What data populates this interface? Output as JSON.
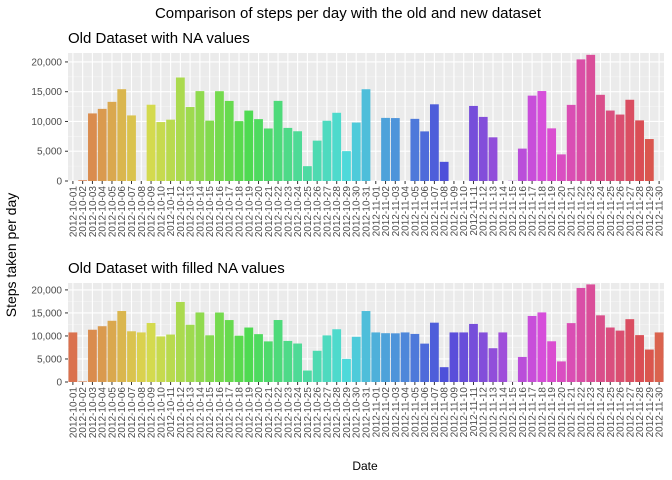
{
  "figure": {
    "title": "Comparison of steps per day with the old and new dataset",
    "ylabel": "Steps taken per day",
    "xlabel": "Date"
  },
  "chart_data": [
    {
      "type": "bar",
      "title": "Old Dataset with NA values",
      "xlabel": "Date",
      "ylabel": "Steps taken per day",
      "ylim": [
        0,
        21500
      ],
      "yticks": [
        0,
        5000,
        10000,
        15000,
        20000
      ],
      "ytick_labels": [
        "0",
        "5,000",
        "10,000",
        "15,000",
        "20,000"
      ],
      "grid": true,
      "fill": "by date (hue palette)",
      "categories": [
        "2012-10-01",
        "2012-10-02",
        "2012-10-03",
        "2012-10-04",
        "2012-10-05",
        "2012-10-06",
        "2012-10-07",
        "2012-10-08",
        "2012-10-09",
        "2012-10-10",
        "2012-10-11",
        "2012-10-12",
        "2012-10-13",
        "2012-10-14",
        "2012-10-15",
        "2012-10-16",
        "2012-10-17",
        "2012-10-18",
        "2012-10-19",
        "2012-10-20",
        "2012-10-21",
        "2012-10-22",
        "2012-10-23",
        "2012-10-24",
        "2012-10-25",
        "2012-10-26",
        "2012-10-27",
        "2012-10-28",
        "2012-10-29",
        "2012-10-30",
        "2012-10-31",
        "2012-11-01",
        "2012-11-02",
        "2012-11-03",
        "2012-11-04",
        "2012-11-05",
        "2012-11-06",
        "2012-11-07",
        "2012-11-08",
        "2012-11-09",
        "2012-11-10",
        "2012-11-11",
        "2012-11-12",
        "2012-11-13",
        "2012-11-14",
        "2012-11-15",
        "2012-11-16",
        "2012-11-17",
        "2012-11-18",
        "2012-11-19",
        "2012-11-20",
        "2012-11-21",
        "2012-11-22",
        "2012-11-23",
        "2012-11-24",
        "2012-11-25",
        "2012-11-26",
        "2012-11-27",
        "2012-11-28",
        "2012-11-29",
        "2012-11-30"
      ],
      "values": [
        null,
        126,
        11352,
        12116,
        13294,
        15420,
        11015,
        null,
        12811,
        9900,
        10304,
        17382,
        12426,
        15098,
        10139,
        15084,
        13452,
        10056,
        11829,
        10395,
        8821,
        13460,
        8918,
        8355,
        2492,
        6778,
        10119,
        11458,
        5018,
        9819,
        15414,
        null,
        10600,
        10571,
        null,
        10439,
        8334,
        12883,
        3219,
        null,
        null,
        12608,
        10765,
        7336,
        null,
        41,
        5441,
        14339,
        15110,
        8841,
        4472,
        12787,
        20427,
        21194,
        14478,
        11834,
        11162,
        13646,
        10183,
        7047,
        null
      ]
    },
    {
      "type": "bar",
      "title": "Old Dataset with filled NA values",
      "xlabel": "Date",
      "ylabel": "Steps taken per day",
      "ylim": [
        0,
        21500
      ],
      "yticks": [
        0,
        5000,
        10000,
        15000,
        20000
      ],
      "ytick_labels": [
        "0",
        "5,000",
        "10,000",
        "15,000",
        "20,000"
      ],
      "grid": true,
      "fill": "by date (hue palette)",
      "categories": [
        "2012-10-01",
        "2012-10-02",
        "2012-10-03",
        "2012-10-04",
        "2012-10-05",
        "2012-10-06",
        "2012-10-07",
        "2012-10-08",
        "2012-10-09",
        "2012-10-10",
        "2012-10-11",
        "2012-10-12",
        "2012-10-13",
        "2012-10-14",
        "2012-10-15",
        "2012-10-16",
        "2012-10-17",
        "2012-10-18",
        "2012-10-19",
        "2012-10-20",
        "2012-10-21",
        "2012-10-22",
        "2012-10-23",
        "2012-10-24",
        "2012-10-25",
        "2012-10-26",
        "2012-10-27",
        "2012-10-28",
        "2012-10-29",
        "2012-10-30",
        "2012-10-31",
        "2012-11-01",
        "2012-11-02",
        "2012-11-03",
        "2012-11-04",
        "2012-11-05",
        "2012-11-06",
        "2012-11-07",
        "2012-11-08",
        "2012-11-09",
        "2012-11-10",
        "2012-11-11",
        "2012-11-12",
        "2012-11-13",
        "2012-11-14",
        "2012-11-15",
        "2012-11-16",
        "2012-11-17",
        "2012-11-18",
        "2012-11-19",
        "2012-11-20",
        "2012-11-21",
        "2012-11-22",
        "2012-11-23",
        "2012-11-24",
        "2012-11-25",
        "2012-11-26",
        "2012-11-27",
        "2012-11-28",
        "2012-11-29",
        "2012-11-30"
      ],
      "values": [
        10766,
        126,
        11352,
        12116,
        13294,
        15420,
        11015,
        10766,
        12811,
        9900,
        10304,
        17382,
        12426,
        15098,
        10139,
        15084,
        13452,
        10056,
        11829,
        10395,
        8821,
        13460,
        8918,
        8355,
        2492,
        6778,
        10119,
        11458,
        5018,
        9819,
        15414,
        10766,
        10600,
        10571,
        10766,
        10439,
        8334,
        12883,
        3219,
        10766,
        10766,
        12608,
        10765,
        7336,
        10766,
        41,
        5441,
        14339,
        15110,
        8841,
        4472,
        12787,
        20427,
        21194,
        14478,
        11834,
        11162,
        13646,
        10183,
        7047,
        10766
      ]
    }
  ]
}
